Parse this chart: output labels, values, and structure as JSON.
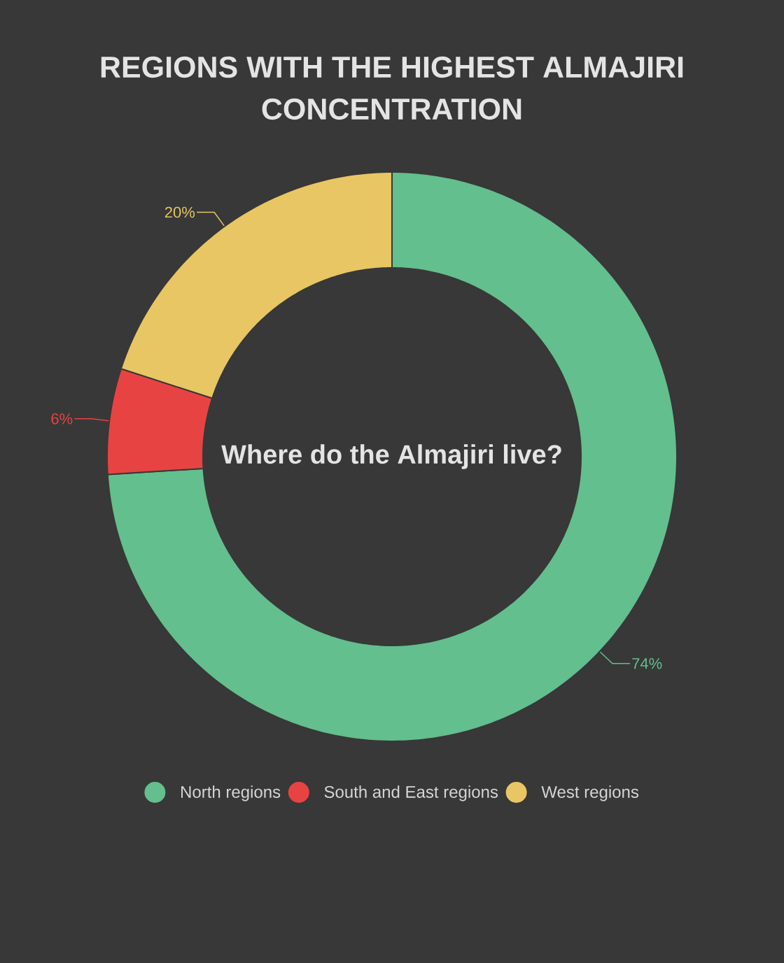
{
  "chart_data": {
    "type": "donut",
    "title": "REGIONS WITH THE HIGHEST ALMAJIRI CONCENTRATION",
    "subtitle": "Where do the Almajiri live?",
    "categories": [
      "North regions",
      "South and East regions",
      "West regions"
    ],
    "values": [
      74,
      6,
      20
    ],
    "colors": [
      "#63bf8d",
      "#e84343",
      "#e8c663"
    ],
    "value_labels": [
      "74%",
      "6%",
      "20%"
    ],
    "legend": "bottom"
  }
}
